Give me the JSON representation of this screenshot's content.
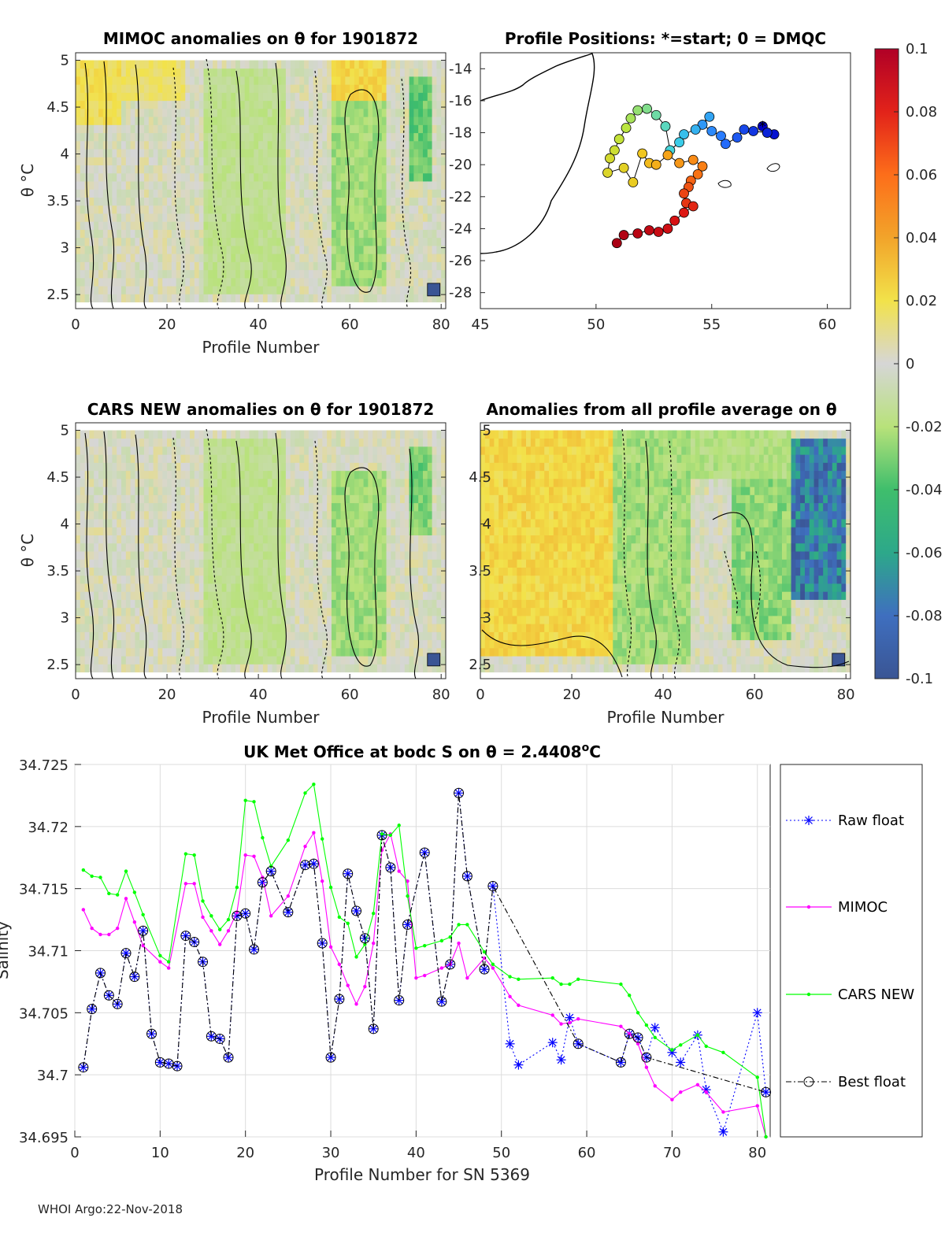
{
  "colors": {
    "raw_float": "#0000ff",
    "mimoc": "#ff00ff",
    "cars_new": "#00ff00",
    "best_float": "#000000",
    "land_fill": "#ffffff",
    "grid": "#dcdcdc",
    "anomaly_bg": "#d6d6d6"
  },
  "footer_text": "WHOI Argo:22-Nov-2018",
  "chart_data": [
    {
      "id": "mimoc_anomaly",
      "type": "heatmap",
      "title": "MIMOC anomalies on θ  for 1901872",
      "xlabel": "Profile Number",
      "ylabel": "θ °C",
      "xlim": [
        0,
        81
      ],
      "ylim": [
        2.35,
        5.08
      ],
      "xticks": [
        0,
        20,
        40,
        60,
        80
      ],
      "yticks": [
        2.5,
        3,
        3.5,
        4,
        4.5,
        5
      ],
      "bands": [
        {
          "x0": 0,
          "x1": 10,
          "th0": 4.3,
          "th1": 5.0,
          "value": 0.025
        },
        {
          "x0": 10,
          "x1": 24,
          "th0": 4.6,
          "th1": 5.0,
          "value": 0.02
        },
        {
          "x0": 28,
          "x1": 46,
          "th0": 2.5,
          "th1": 4.9,
          "value": -0.02
        },
        {
          "x0": 56,
          "x1": 68,
          "th0": 2.6,
          "th1": 4.6,
          "value": -0.03
        },
        {
          "x0": 73,
          "x1": 78,
          "th0": 3.7,
          "th1": 4.85,
          "value": -0.045
        },
        {
          "x0": 56,
          "x1": 68,
          "th0": 4.6,
          "th1": 5.0,
          "value": 0.03
        }
      ]
    },
    {
      "id": "profile_positions",
      "type": "scatter",
      "title": "Profile Positions: *=start; 0 = DMQC",
      "xlim": [
        45,
        61
      ],
      "ylim": [
        -29,
        -13
      ],
      "xticks": [
        45,
        50,
        55,
        60
      ],
      "yticks": [
        -14,
        -16,
        -18,
        -20,
        -22,
        -24,
        -26,
        -28
      ],
      "positions": [
        [
          57.2,
          -17.6
        ],
        [
          57.7,
          -18.1
        ],
        [
          57.4,
          -18.0
        ],
        [
          56.8,
          -17.9
        ],
        [
          56.4,
          -17.8
        ],
        [
          56.1,
          -18.3
        ],
        [
          55.6,
          -18.7
        ],
        [
          55.4,
          -18.2
        ],
        [
          55.0,
          -17.9
        ],
        [
          54.6,
          -17.5
        ],
        [
          54.9,
          -17.0
        ],
        [
          54.3,
          -17.8
        ],
        [
          53.8,
          -18.1
        ],
        [
          53.6,
          -18.6
        ],
        [
          53.2,
          -19.1
        ],
        [
          53.0,
          -17.6
        ],
        [
          52.6,
          -16.9
        ],
        [
          52.2,
          -16.5
        ],
        [
          51.8,
          -16.6
        ],
        [
          51.5,
          -17.1
        ],
        [
          51.3,
          -17.7
        ],
        [
          51.0,
          -18.4
        ],
        [
          50.8,
          -19.1
        ],
        [
          50.6,
          -19.6
        ],
        [
          50.5,
          -20.5
        ],
        [
          51.2,
          -20.2
        ],
        [
          51.6,
          -21.1
        ],
        [
          52.0,
          -19.3
        ],
        [
          52.3,
          -19.9
        ],
        [
          52.6,
          -20.0
        ],
        [
          53.1,
          -19.4
        ],
        [
          53.6,
          -19.9
        ],
        [
          54.2,
          -19.7
        ],
        [
          54.6,
          -20.1
        ],
        [
          54.4,
          -20.6
        ],
        [
          54.1,
          -21.0
        ],
        [
          54.0,
          -21.4
        ],
        [
          53.8,
          -21.8
        ],
        [
          53.9,
          -22.4
        ],
        [
          54.2,
          -22.6
        ],
        [
          53.8,
          -23.0
        ],
        [
          53.4,
          -23.5
        ],
        [
          53.1,
          -24.0
        ],
        [
          52.7,
          -24.2
        ],
        [
          52.3,
          -24.1
        ],
        [
          51.8,
          -24.3
        ],
        [
          51.2,
          -24.4
        ],
        [
          50.9,
          -24.9
        ]
      ]
    },
    {
      "id": "cars_anomaly",
      "type": "heatmap",
      "title": "CARS NEW anomalies on θ for 1901872",
      "xlabel": "Profile Number",
      "ylabel": "θ °C",
      "xlim": [
        0,
        81
      ],
      "ylim": [
        2.35,
        5.08
      ],
      "xticks": [
        0,
        20,
        40,
        60,
        80
      ],
      "yticks": [
        2.5,
        3,
        3.5,
        4,
        4.5,
        5
      ],
      "bands": [
        {
          "x0": 28,
          "x1": 46,
          "th0": 2.5,
          "th1": 4.9,
          "value": -0.02
        },
        {
          "x0": 56,
          "x1": 68,
          "th0": 2.6,
          "th1": 4.6,
          "value": -0.03
        },
        {
          "x0": 73,
          "x1": 78,
          "th0": 3.9,
          "th1": 4.85,
          "value": -0.04
        }
      ]
    },
    {
      "id": "profile_average_anomaly",
      "type": "heatmap",
      "title": "Anomalies from all profile average on θ",
      "xlabel": "Profile Number",
      "ylabel": "θ °C",
      "xlim": [
        0,
        81
      ],
      "ylim": [
        2.35,
        5.08
      ],
      "xticks": [
        0,
        20,
        40,
        60,
        80
      ],
      "yticks": [
        2.5,
        3,
        3.5,
        4,
        4.5,
        5
      ],
      "bands": [
        {
          "x0": 0,
          "x1": 29,
          "th0": 2.6,
          "th1": 5.0,
          "value": 0.03
        },
        {
          "x0": 29,
          "x1": 46,
          "th0": 2.5,
          "th1": 5.0,
          "value": -0.03
        },
        {
          "x0": 46,
          "x1": 68,
          "th0": 4.5,
          "th1": 5.0,
          "value": -0.025
        },
        {
          "x0": 55,
          "x1": 68,
          "th0": 2.8,
          "th1": 4.5,
          "value": -0.035
        },
        {
          "x0": 68,
          "x1": 80,
          "th0": 3.2,
          "th1": 4.9,
          "value": -0.1
        }
      ]
    },
    {
      "id": "colorbar",
      "type": "colorbar",
      "range": [
        -0.1,
        0.1
      ],
      "tick_labels": [
        "0.1",
        "0.08",
        "0.06",
        "0.04",
        "0.02",
        "0",
        "-0.02",
        "-0.04",
        "-0.06",
        "-0.08",
        "-0.1"
      ]
    },
    {
      "id": "salinity_series",
      "type": "line",
      "title": "UK Met Office at bodc S on θ = 2.4408°C",
      "title_parts": {
        "main": "UK Met Office at bodc S on θ = 2.4408",
        "sup": "o",
        "tail": "C"
      },
      "xlabel": "Profile Number for SN 5369",
      "ylabel": "Salinity",
      "xlim": [
        0,
        81.5
      ],
      "ylim": [
        34.695,
        34.725
      ],
      "xticks": [
        0,
        10,
        20,
        30,
        40,
        50,
        60,
        70,
        80
      ],
      "yticks": [
        34.695,
        34.7,
        34.705,
        34.71,
        34.715,
        34.72,
        34.725
      ],
      "ytick_labels": [
        "34.695",
        "34.7",
        "34.705",
        "34.71",
        "34.715",
        "34.72",
        "34.725"
      ],
      "legend": [
        "Raw float",
        "MIMOC",
        "CARS NEW",
        "Best float"
      ],
      "series": [
        {
          "name": "Raw float",
          "x": [
            1,
            2,
            3,
            4,
            5,
            6,
            7,
            8,
            9,
            10,
            11,
            12,
            13,
            14,
            15,
            16,
            17,
            18,
            19,
            20,
            21,
            22,
            23,
            25,
            27,
            28,
            29,
            30,
            31,
            32,
            33,
            34,
            35,
            36,
            37,
            38,
            39,
            41,
            43,
            44,
            45,
            46,
            48,
            49,
            51,
            52,
            56,
            57,
            58,
            59,
            64,
            65,
            66,
            67,
            68,
            70,
            71,
            73,
            74,
            76,
            80,
            81
          ],
          "y": [
            34.7006,
            34.7053,
            34.7082,
            34.7064,
            34.7057,
            34.7098,
            34.7079,
            34.7116,
            34.7033,
            34.701,
            34.7009,
            34.7007,
            34.7112,
            34.7107,
            34.7091,
            34.7031,
            34.7029,
            34.7014,
            34.7128,
            34.713,
            34.7101,
            34.7155,
            34.7164,
            34.7131,
            34.7169,
            34.717,
            34.7106,
            34.7014,
            34.7061,
            34.7162,
            34.7132,
            34.711,
            34.7037,
            34.7193,
            34.7167,
            34.706,
            34.7121,
            34.7179,
            34.7059,
            34.7089,
            34.7227,
            34.716,
            34.7085,
            34.7152,
            34.7025,
            34.7008,
            34.7026,
            34.7012,
            34.7046,
            34.7025,
            34.701,
            34.7033,
            34.703,
            34.7014,
            34.7038,
            34.7018,
            34.701,
            34.7032,
            34.6988,
            34.6954,
            34.705,
            34.6986
          ]
        },
        {
          "name": "MIMOC",
          "x": [
            1,
            2,
            3,
            4,
            5,
            6,
            7,
            8,
            10,
            11,
            13,
            14,
            15,
            16,
            17,
            18,
            19,
            20,
            21,
            22,
            23,
            25,
            27,
            28,
            29,
            30,
            31,
            32,
            33,
            34,
            35,
            36,
            37,
            38,
            39,
            40,
            41,
            43,
            44,
            45,
            46,
            48,
            49,
            51,
            52,
            56,
            57,
            58,
            59,
            64,
            65,
            66,
            67,
            68,
            70,
            71,
            73,
            74,
            76,
            80,
            81
          ],
          "y": [
            34.7133,
            34.7118,
            34.7113,
            34.7113,
            34.7118,
            34.7142,
            34.7123,
            34.7104,
            34.7091,
            34.7086,
            34.7154,
            34.7154,
            34.7127,
            34.7116,
            34.7105,
            34.7116,
            34.7131,
            34.7177,
            34.7176,
            34.7159,
            34.7128,
            34.7144,
            34.7184,
            34.7195,
            34.7156,
            34.7103,
            34.7089,
            34.7072,
            34.7057,
            34.7071,
            34.7106,
            34.7181,
            34.7194,
            34.7164,
            34.7156,
            34.7078,
            34.708,
            34.7086,
            34.7089,
            34.7106,
            34.7078,
            34.7094,
            34.7086,
            34.7063,
            34.7056,
            34.7048,
            34.7041,
            34.7042,
            34.7045,
            34.7039,
            34.7033,
            34.7025,
            34.7006,
            34.6991,
            34.698,
            34.6986,
            34.6992,
            34.6986,
            34.697,
            34.6975,
            34.695
          ]
        },
        {
          "name": "CARS NEW",
          "x": [
            1,
            2,
            3,
            4,
            5,
            6,
            7,
            8,
            10,
            11,
            13,
            14,
            15,
            16,
            17,
            18,
            19,
            20,
            21,
            22,
            23,
            25,
            27,
            28,
            29,
            30,
            31,
            32,
            33,
            34,
            35,
            36,
            37,
            38,
            39,
            40,
            41,
            43,
            44,
            45,
            46,
            48,
            49,
            51,
            52,
            56,
            57,
            58,
            59,
            64,
            65,
            66,
            67,
            68,
            70,
            71,
            73,
            74,
            76,
            80,
            81
          ],
          "y": [
            34.7165,
            34.716,
            34.7159,
            34.7146,
            34.7145,
            34.7164,
            34.7147,
            34.7129,
            34.7096,
            34.7091,
            34.7178,
            34.7177,
            34.714,
            34.7128,
            34.7117,
            34.7125,
            34.7151,
            34.7221,
            34.722,
            34.7191,
            34.7168,
            34.7189,
            34.7227,
            34.7234,
            34.719,
            34.7151,
            34.7127,
            34.7122,
            34.7095,
            34.7105,
            34.713,
            34.7194,
            34.7193,
            34.7201,
            34.7144,
            34.7102,
            34.7104,
            34.7108,
            34.7111,
            34.7121,
            34.7121,
            34.7099,
            34.7089,
            34.7079,
            34.7077,
            34.7078,
            34.7073,
            34.7073,
            34.7077,
            34.7073,
            34.7064,
            34.705,
            34.704,
            34.703,
            34.702,
            34.7024,
            34.7032,
            34.7023,
            34.7018,
            34.6998,
            34.695
          ]
        },
        {
          "name": "Best float",
          "x": [
            1,
            2,
            3,
            4,
            5,
            6,
            7,
            8,
            9,
            10,
            11,
            12,
            13,
            14,
            15,
            16,
            17,
            18,
            19,
            20,
            21,
            22,
            23,
            25,
            27,
            28,
            29,
            30,
            31,
            32,
            33,
            34,
            35,
            36,
            37,
            38,
            39,
            41,
            43,
            44,
            45,
            46,
            48,
            49,
            59,
            64,
            65,
            66,
            67,
            81
          ],
          "y": [
            34.7006,
            34.7053,
            34.7082,
            34.7064,
            34.7057,
            34.7098,
            34.7079,
            34.7116,
            34.7033,
            34.701,
            34.7009,
            34.7007,
            34.7112,
            34.7107,
            34.7091,
            34.7031,
            34.7029,
            34.7014,
            34.7128,
            34.713,
            34.7101,
            34.7155,
            34.7164,
            34.7131,
            34.7169,
            34.717,
            34.7106,
            34.7014,
            34.7061,
            34.7162,
            34.7132,
            34.711,
            34.7037,
            34.7193,
            34.7167,
            34.706,
            34.7121,
            34.7179,
            34.7059,
            34.7089,
            34.7227,
            34.716,
            34.7085,
            34.7152,
            34.7025,
            34.701,
            34.7033,
            34.703,
            34.7014,
            34.6986
          ]
        }
      ]
    }
  ]
}
